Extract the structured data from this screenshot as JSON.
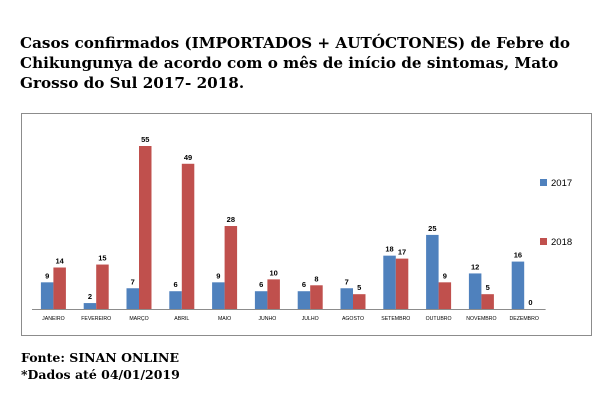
{
  "title": "Casos confirmados (IMPORTADOS + AUTÓCTONES) de Febre do Chikungunya de acordo com o mês de início de sintomas, Mato Grosso do Sul 2017- 2018.",
  "footer": {
    "source": "Fonte: SINAN ONLINE",
    "note": "*Dados até 04/01/2019"
  },
  "chart_data": {
    "type": "bar",
    "categories": [
      "JANEIRO",
      "FEVEREIRO",
      "MARÇO",
      "ABRIL",
      "MAIO",
      "JUNHO",
      "JULHO",
      "AGOSTO",
      "SETEMBRO",
      "OUTUBRO",
      "NOVEMBRO",
      "DEZEMBRO"
    ],
    "series": [
      {
        "name": "2017",
        "color": "#4f81bd",
        "values": [
          9,
          2,
          7,
          6,
          9,
          6,
          6,
          7,
          18,
          25,
          12,
          16
        ]
      },
      {
        "name": "2018",
        "color": "#c0504d",
        "values": [
          14,
          15,
          55,
          49,
          28,
          10,
          8,
          5,
          17,
          9,
          5,
          0
        ]
      }
    ],
    "ylim": [
      0,
      55
    ],
    "legend": "right",
    "grid": false
  }
}
